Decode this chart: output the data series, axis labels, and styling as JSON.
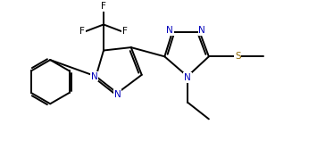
{
  "bg_color": "#ffffff",
  "atom_color": "#000000",
  "n_color": "#0000bb",
  "s_color": "#8b6400",
  "f_color": "#000000",
  "bond_color": "#000000",
  "bond_lw": 1.4,
  "dbo": 0.06,
  "figsize": [
    3.55,
    1.86
  ],
  "dpi": 100,
  "xlim": [
    0,
    10.2
  ],
  "ylim": [
    0,
    5.3
  ]
}
